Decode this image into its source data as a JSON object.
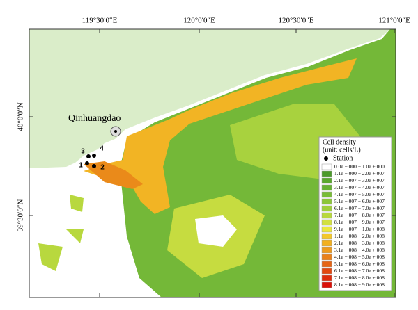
{
  "axes": {
    "top": [
      "119°30′0″E",
      "120°0′0″E",
      "120°30′0″E",
      "121°0′0″E"
    ],
    "left": [
      "40°0′0″N",
      "39°30′0″N"
    ]
  },
  "place": "Qinhuangdao",
  "stations": [
    "1",
    "2",
    "3",
    "4"
  ],
  "legend": {
    "title": "Cell density",
    "unit": "(unit: cells/L)",
    "station": "Station",
    "entries": [
      {
        "label": "0.0e + 000 − 1.0e + 000",
        "color": "#ffffff"
      },
      {
        "label": "1.1e + 000 − 2.0e + 007",
        "color": "#4c9a2a"
      },
      {
        "label": "2.1e + 007 − 3.0e + 007",
        "color": "#5aa82e"
      },
      {
        "label": "3.1e + 007 − 4.0e + 007",
        "color": "#66b232"
      },
      {
        "label": "4.1e + 007 − 5.0e + 007",
        "color": "#78bc36"
      },
      {
        "label": "5.1e + 007 − 6.0e + 007",
        "color": "#8cc63a"
      },
      {
        "label": "6.1e + 007 − 7.0e + 007",
        "color": "#a0cf3c"
      },
      {
        "label": "7.1e + 007 − 8.0e + 007",
        "color": "#b8d83e"
      },
      {
        "label": "8.1e + 007 − 9.0e + 007",
        "color": "#d2e040"
      },
      {
        "label": "9.1e + 007 − 1.0e + 008",
        "color": "#ece83c"
      },
      {
        "label": "1.1e + 008 − 2.0e + 008",
        "color": "#f4c82a"
      },
      {
        "label": "2.1e + 008 − 3.0e + 008",
        "color": "#f2b020"
      },
      {
        "label": "3.1e + 008 − 4.0e + 008",
        "color": "#ee9a1c"
      },
      {
        "label": "4.1e + 008 − 5.0e + 008",
        "color": "#ea8018"
      },
      {
        "label": "5.1e + 008 − 6.0e + 008",
        "color": "#e66414"
      },
      {
        "label": "6.1e + 008 − 7.0e + 008",
        "color": "#e24810"
      },
      {
        "label": "7.1e + 008 − 8.0e + 008",
        "color": "#de2c0c"
      },
      {
        "label": "8.1e + 008 − 9.0e + 008",
        "color": "#da1008"
      }
    ]
  }
}
